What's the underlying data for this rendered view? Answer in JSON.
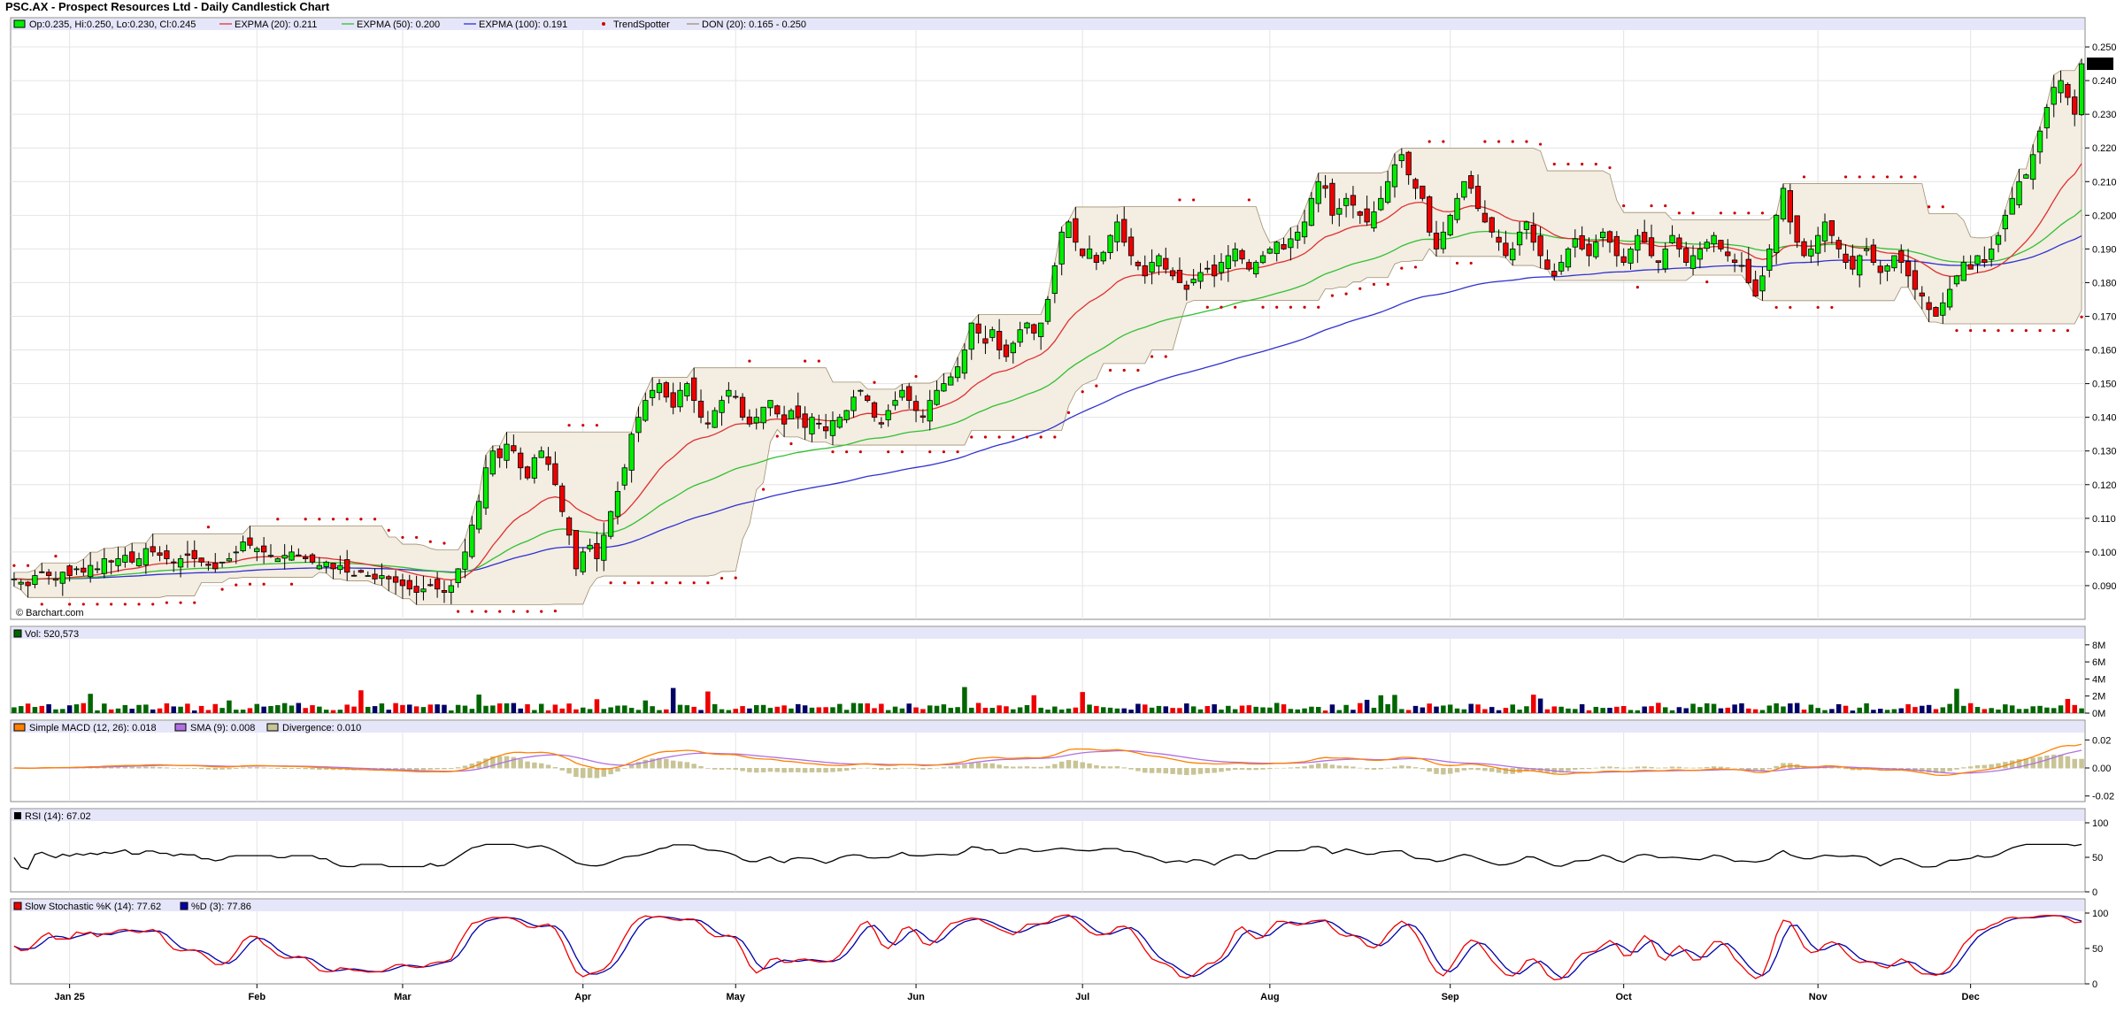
{
  "title": "PSC.AX - Prospect Resources Ltd - Daily Candlestick Chart",
  "watermark": "© Barchart.com",
  "colors": {
    "up": "#00ee00",
    "down": "#ee0000",
    "ema20": "#e03030",
    "ema50": "#30c030",
    "ema100": "#3030d0",
    "trendspotter": "#cc0000",
    "donchian": "#f3ede2",
    "macd": "#ff8000",
    "signal": "#b070e0",
    "divergence": "#c8c496",
    "rsi": "#000000",
    "stochK": "#ee0000",
    "stochD": "#0000aa",
    "legendBar": "#e6e6fa"
  },
  "legends": {
    "price": {
      "ohlc": "Op:0.235, Hi:0.250, Lo:0.230, Cl:0.245",
      "ema20": "EXPMA (20): 0.211",
      "ema50": "EXPMA (50): 0.200",
      "ema100": "EXPMA (100): 0.191",
      "trendspotter": "TrendSpotter",
      "donchian": "DON (20): 0.165 - 0.250"
    },
    "volume": "Vol: 520,573",
    "macd": {
      "macd": "Simple MACD (12, 26): 0.018",
      "sma": "SMA (9): 0.008",
      "div": "Divergence: 0.010"
    },
    "rsi": "RSI (14): 67.02",
    "stoch": {
      "k": "Slow Stochastic %K (14): 77.62",
      "d": "%D (3): 77.86"
    }
  },
  "chart_data": [
    {
      "type": "candlestick",
      "panel": "price",
      "ylim": [
        0.08,
        0.255
      ],
      "yticks": [
        "0.090",
        "0.100",
        "0.110",
        "0.120",
        "0.130",
        "0.140",
        "0.150",
        "0.160",
        "0.170",
        "0.180",
        "0.190",
        "0.200",
        "0.210",
        "0.220",
        "0.230",
        "0.240",
        "0.250"
      ],
      "last_price_label": "0.245",
      "x_labels": [
        "Jan 25",
        "Feb",
        "Mar",
        "Apr",
        "May",
        "Jun",
        "Jul",
        "Aug",
        "Sep",
        "Oct",
        "Nov",
        "Dec"
      ],
      "x_label_index": [
        8,
        35,
        56,
        82,
        104,
        130,
        154,
        181,
        207,
        232,
        260,
        282
      ],
      "closes": [
        0.092,
        0.091,
        0.09,
        0.093,
        0.094,
        0.093,
        0.092,
        0.094,
        0.093,
        0.095,
        0.094,
        0.096,
        0.095,
        0.098,
        0.097,
        0.098,
        0.099,
        0.097,
        0.098,
        0.101,
        0.1,
        0.099,
        0.098,
        0.097,
        0.098,
        0.099,
        0.098,
        0.097,
        0.096,
        0.095,
        0.097,
        0.098,
        0.1,
        0.103,
        0.102,
        0.101,
        0.1,
        0.099,
        0.098,
        0.099,
        0.1,
        0.099,
        0.098,
        0.097,
        0.096,
        0.097,
        0.095,
        0.096,
        0.094,
        0.093,
        0.094,
        0.093,
        0.092,
        0.093,
        0.092,
        0.091,
        0.09,
        0.089,
        0.088,
        0.089,
        0.09,
        0.089,
        0.088,
        0.09,
        0.095,
        0.1,
        0.108,
        0.115,
        0.125,
        0.13,
        0.128,
        0.132,
        0.13,
        0.125,
        0.122,
        0.128,
        0.13,
        0.126,
        0.12,
        0.112,
        0.105,
        0.095,
        0.1,
        0.102,
        0.098,
        0.105,
        0.112,
        0.118,
        0.125,
        0.135,
        0.14,
        0.145,
        0.148,
        0.15,
        0.146,
        0.143,
        0.148,
        0.15,
        0.145,
        0.14,
        0.138,
        0.142,
        0.145,
        0.148,
        0.146,
        0.14,
        0.138,
        0.14,
        0.143,
        0.145,
        0.141,
        0.138,
        0.142,
        0.14,
        0.137,
        0.14,
        0.138,
        0.136,
        0.139,
        0.14,
        0.142,
        0.146,
        0.148,
        0.145,
        0.14,
        0.138,
        0.142,
        0.145,
        0.148,
        0.145,
        0.142,
        0.14,
        0.145,
        0.148,
        0.15,
        0.152,
        0.155,
        0.16,
        0.168,
        0.165,
        0.162,
        0.166,
        0.16,
        0.158,
        0.162,
        0.166,
        0.168,
        0.165,
        0.168,
        0.175,
        0.185,
        0.195,
        0.198,
        0.192,
        0.188,
        0.19,
        0.186,
        0.189,
        0.194,
        0.198,
        0.192,
        0.188,
        0.185,
        0.182,
        0.186,
        0.188,
        0.184,
        0.182,
        0.18,
        0.178,
        0.181,
        0.183,
        0.184,
        0.182,
        0.186,
        0.188,
        0.19,
        0.187,
        0.184,
        0.186,
        0.188,
        0.19,
        0.192,
        0.19,
        0.193,
        0.195,
        0.198,
        0.205,
        0.21,
        0.208,
        0.2,
        0.202,
        0.205,
        0.203,
        0.2,
        0.198,
        0.201,
        0.205,
        0.21,
        0.215,
        0.218,
        0.212,
        0.208,
        0.205,
        0.195,
        0.19,
        0.195,
        0.2,
        0.205,
        0.21,
        0.208,
        0.202,
        0.198,
        0.195,
        0.192,
        0.188,
        0.19,
        0.195,
        0.198,
        0.192,
        0.188,
        0.184,
        0.182,
        0.186,
        0.19,
        0.193,
        0.19,
        0.188,
        0.192,
        0.195,
        0.192,
        0.188,
        0.186,
        0.19,
        0.194,
        0.192,
        0.188,
        0.186,
        0.19,
        0.194,
        0.19,
        0.186,
        0.188,
        0.19,
        0.192,
        0.194,
        0.19,
        0.188,
        0.186,
        0.185,
        0.18,
        0.176,
        0.182,
        0.19,
        0.2,
        0.208,
        0.198,
        0.192,
        0.188,
        0.19,
        0.194,
        0.198,
        0.194,
        0.19,
        0.186,
        0.184,
        0.188,
        0.19,
        0.186,
        0.183,
        0.185,
        0.188,
        0.186,
        0.182,
        0.178,
        0.176,
        0.172,
        0.17,
        0.174,
        0.178,
        0.182,
        0.186,
        0.184,
        0.188,
        0.186,
        0.19,
        0.194,
        0.2,
        0.205,
        0.21,
        0.212,
        0.218,
        0.225,
        0.232,
        0.238,
        0.24,
        0.235,
        0.23,
        0.245
      ]
    },
    {
      "type": "bar",
      "panel": "volume",
      "yticks": [
        "0M",
        "2M",
        "4M",
        "6M",
        "8M"
      ],
      "ylim": [
        0,
        8.5
      ]
    },
    {
      "type": "line",
      "panel": "macd",
      "yticks": [
        "0.02",
        "0.00",
        "-0.02"
      ],
      "ylim": [
        -0.024,
        0.024
      ]
    },
    {
      "type": "line",
      "panel": "rsi",
      "yticks": [
        "0",
        "50",
        "100"
      ],
      "ylim": [
        0,
        100
      ]
    },
    {
      "type": "line",
      "panel": "stochastic",
      "yticks": [
        "0",
        "50",
        "100"
      ],
      "ylim": [
        0,
        100
      ]
    }
  ]
}
